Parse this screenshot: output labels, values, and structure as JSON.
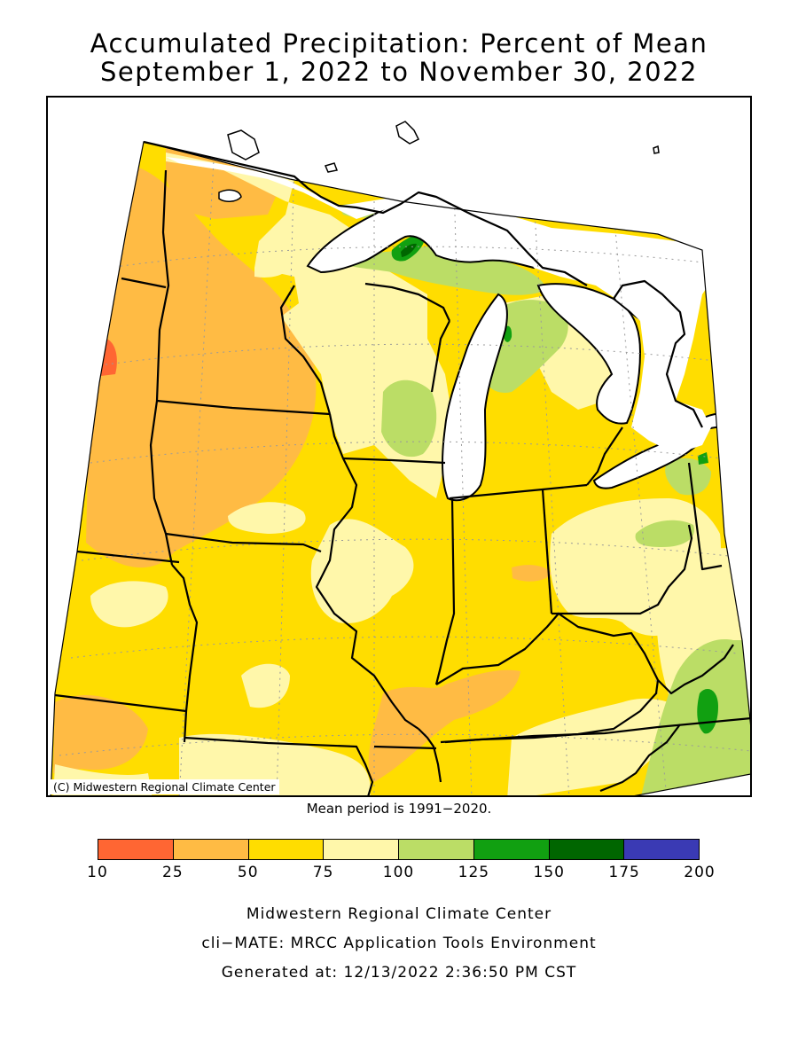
{
  "header": {
    "title_line1": "Accumulated Precipitation: Percent of Mean",
    "title_line2": "September 1, 2022 to November 30, 2022"
  },
  "map": {
    "copyright": "(C) Midwestern Regional Climate Center",
    "mean_period": "Mean period is 1991−2020.",
    "region": "Midwest United States",
    "border_color": "#000000",
    "lake_color": "#ffffff"
  },
  "legend": {
    "colors": [
      "#ff6633",
      "#ffbb44",
      "#ffdd00",
      "#fff7aa",
      "#bbdd66",
      "#11a011",
      "#006600",
      "#3a3ab4"
    ],
    "ticks": [
      "10",
      "25",
      "50",
      "75",
      "100",
      "125",
      "150",
      "175",
      "200"
    ]
  },
  "footer": {
    "line1": "Midwestern Regional Climate Center",
    "line2": "cli−MATE: MRCC Application Tools Environment",
    "line3": "Generated at: 12/13/2022 2:36:50 PM CST"
  }
}
